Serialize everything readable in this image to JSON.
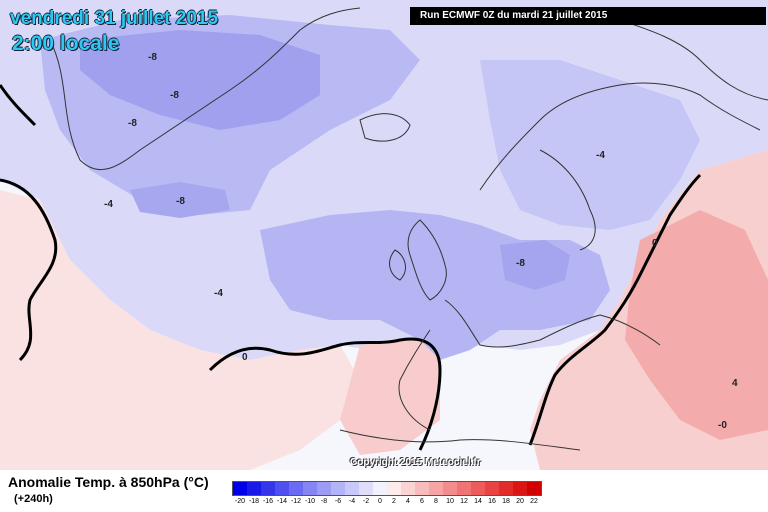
{
  "header": {
    "date": "vendredi 31 juillet 2015",
    "hour": "2:00 locale",
    "run": "Run ECMWF 0Z du mardi 21 juillet 2015"
  },
  "copyright": "Copyright 2015 Meteociel.fr",
  "legend": {
    "title": "Anomalie Temp. à 850hPa (°C)",
    "lead_time": "(+240h)",
    "ticks": [
      "-20",
      "-18",
      "-16",
      "-14",
      "-12",
      "-10",
      "-8",
      "-6",
      "-4",
      "-2",
      "0",
      "2",
      "4",
      "6",
      "8",
      "10",
      "12",
      "14",
      "16",
      "18",
      "20",
      "22"
    ],
    "colors": [
      "#0000e6",
      "#1a1ae8",
      "#3535ec",
      "#5050f0",
      "#6a6af2",
      "#8585f4",
      "#9c9cf5",
      "#b3b3f7",
      "#c8c8f9",
      "#dedefb",
      "#f2f2fd",
      "#fdeaea",
      "#fbd3d3",
      "#f9bcbc",
      "#f6a4a4",
      "#f38c8c",
      "#f07474",
      "#ec5c5c",
      "#e84444",
      "#e22c2c",
      "#db1414",
      "#d30000"
    ]
  },
  "contour_labels": [
    {
      "text": "-8",
      "region": "greenland-north"
    },
    {
      "text": "-8",
      "region": "greenland-center"
    },
    {
      "text": "-8",
      "region": "greenland-west"
    },
    {
      "text": "-8",
      "region": "greenland-south"
    },
    {
      "text": "-8",
      "region": "germany"
    },
    {
      "text": "-4",
      "region": "north-atlantic"
    },
    {
      "text": "-4",
      "region": "scandinavia"
    },
    {
      "text": "-4",
      "region": "mid-atlantic"
    },
    {
      "text": "0",
      "region": "azores"
    },
    {
      "text": "0",
      "region": "eastern-europe"
    },
    {
      "text": "4",
      "region": "russia"
    },
    {
      "text": "-0",
      "region": "black-sea"
    }
  ]
}
